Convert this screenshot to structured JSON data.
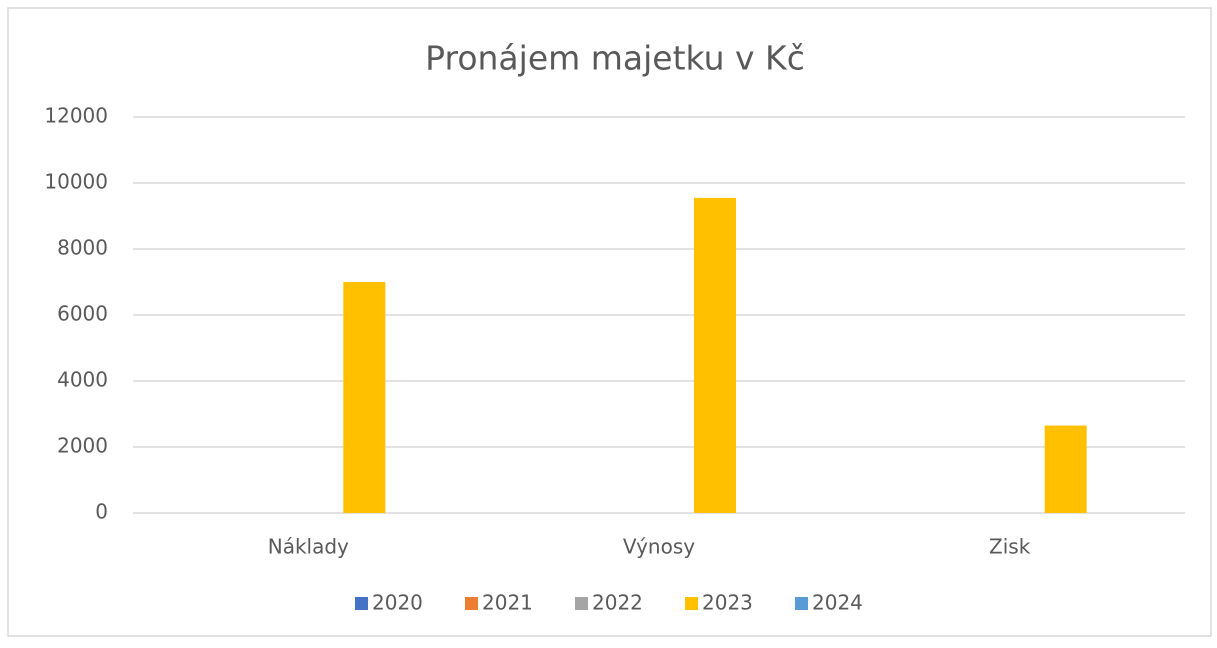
{
  "chart_data": {
    "type": "bar",
    "title": "Pronájem majetku v Kč",
    "categories": [
      "Náklady",
      "Výnosy",
      "Zisk"
    ],
    "series": [
      {
        "name": "2020",
        "color": "#4472c4",
        "values": [
          0,
          0,
          0
        ]
      },
      {
        "name": "2021",
        "color": "#ed7d31",
        "values": [
          0,
          0,
          0
        ]
      },
      {
        "name": "2022",
        "color": "#a5a5a5",
        "values": [
          0,
          0,
          0
        ]
      },
      {
        "name": "2023",
        "color": "#ffc000",
        "values": [
          7000,
          9550,
          2650
        ]
      },
      {
        "name": "2024",
        "color": "#5b9bd5",
        "values": [
          0,
          0,
          0
        ]
      }
    ],
    "ylim": [
      0,
      12000
    ],
    "yticks": [
      0,
      2000,
      4000,
      6000,
      8000,
      10000,
      12000
    ],
    "grid": true,
    "legend": "bottom"
  }
}
